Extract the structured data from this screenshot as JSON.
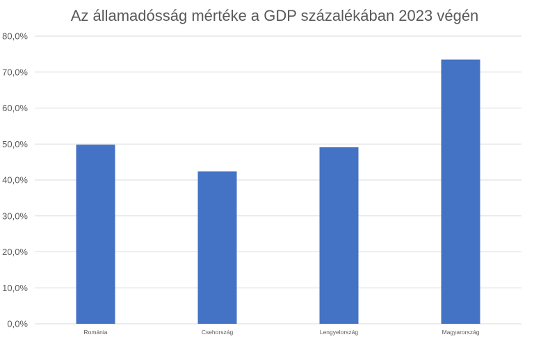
{
  "chart_data": {
    "type": "bar",
    "title": "Az államadósság mértéke a GDP százalékában 2023 végén",
    "categories": [
      "Románia",
      "Csehország",
      "Lengyelország",
      "Magyarország"
    ],
    "values": [
      49.8,
      42.4,
      49.1,
      73.5
    ],
    "ylim": [
      0,
      80
    ],
    "yticks": [
      "0,0%",
      "10,0%",
      "20,0%",
      "30,0%",
      "40,0%",
      "50,0%",
      "60,0%",
      "70,0%",
      "80,0%"
    ],
    "xlabel": "",
    "ylabel": "",
    "grid": true,
    "bar_color": "#4472c4",
    "grid_color": "#d9d9d9"
  }
}
